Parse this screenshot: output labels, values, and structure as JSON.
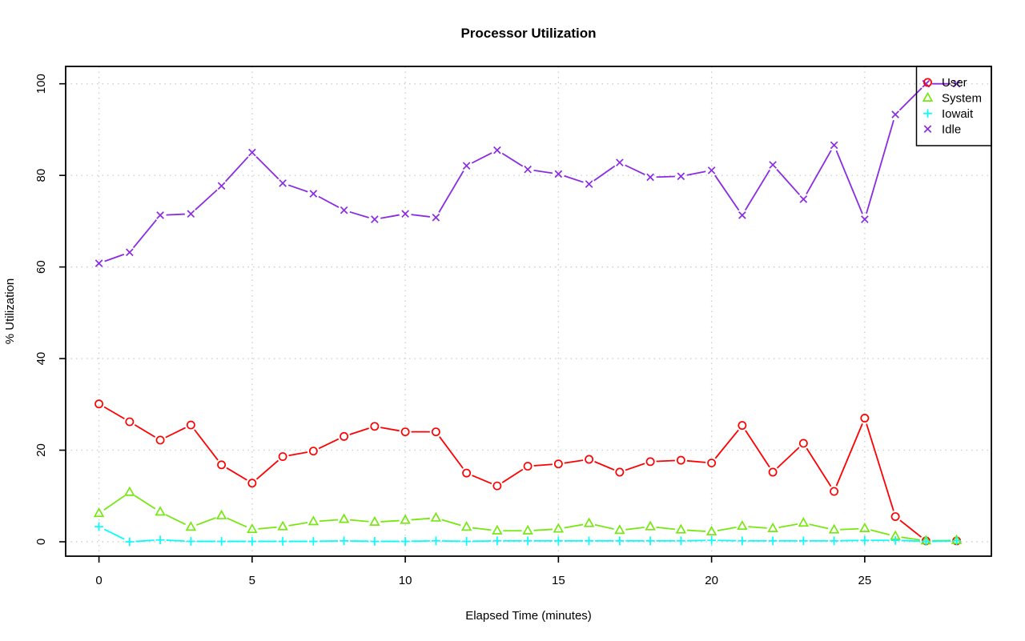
{
  "page": {
    "background": "#FFFFFF"
  },
  "chart_data": {
    "type": "line",
    "title": "Processor Utilization",
    "xlabel": "Elapsed Time (minutes)",
    "ylabel": "% Utilization",
    "xlim": [
      0,
      28
    ],
    "ylim": [
      0,
      100
    ],
    "x_ticks": [
      0,
      5,
      10,
      15,
      20,
      25
    ],
    "y_ticks": [
      0,
      20,
      40,
      60,
      80,
      100
    ],
    "grid": "dotted",
    "grid_color": "#CFCFCF",
    "legend_position": "top-right",
    "marker_style": "open-r-pch",
    "line_type": "both-points-and-lines",
    "x": [
      0,
      1,
      2,
      3,
      4,
      5,
      6,
      7,
      8,
      9,
      10,
      11,
      12,
      13,
      14,
      15,
      16,
      17,
      18,
      19,
      20,
      21,
      22,
      23,
      24,
      25,
      26,
      27,
      28
    ],
    "series": [
      {
        "name": "User",
        "color": "#FF0000",
        "marker": "circle",
        "values": [
          30.1,
          26.2,
          22.2,
          25.5,
          16.8,
          12.8,
          18.6,
          19.8,
          23.0,
          25.2,
          24.0,
          24.0,
          15.0,
          12.2,
          16.5,
          17.0,
          18.0,
          15.2,
          17.5,
          17.8,
          17.2,
          25.4,
          15.2,
          21.5,
          11.0,
          27.0,
          5.5,
          0.2,
          0.2
        ]
      },
      {
        "name": "System",
        "color": "#76E810",
        "marker": "triangle",
        "values": [
          6.2,
          10.8,
          6.5,
          3.2,
          5.7,
          2.7,
          3.3,
          4.4,
          4.9,
          4.3,
          4.7,
          5.2,
          3.2,
          2.4,
          2.4,
          2.8,
          4.0,
          2.5,
          3.3,
          2.6,
          2.2,
          3.4,
          2.9,
          4.1,
          2.6,
          2.9,
          1.2,
          0.2,
          0.3
        ]
      },
      {
        "name": "Iowait",
        "color": "#00FFFF",
        "marker": "plus",
        "values": [
          3.3,
          0.0,
          0.4,
          0.1,
          0.1,
          0.1,
          0.1,
          0.1,
          0.2,
          0.1,
          0.1,
          0.2,
          0.1,
          0.2,
          0.2,
          0.2,
          0.2,
          0.2,
          0.2,
          0.2,
          0.3,
          0.2,
          0.2,
          0.2,
          0.2,
          0.3,
          0.3,
          0.1,
          0.2
        ]
      },
      {
        "name": "Idle",
        "color": "#8A2BE2",
        "marker": "x",
        "values": [
          60.8,
          63.2,
          71.3,
          71.6,
          77.7,
          85.0,
          78.3,
          76.0,
          72.4,
          70.4,
          71.6,
          70.8,
          82.1,
          85.5,
          81.3,
          80.3,
          78.1,
          82.8,
          79.6,
          79.8,
          81.1,
          71.3,
          82.3,
          74.8,
          86.6,
          70.4,
          93.3,
          100.0,
          100.0
        ]
      }
    ]
  }
}
